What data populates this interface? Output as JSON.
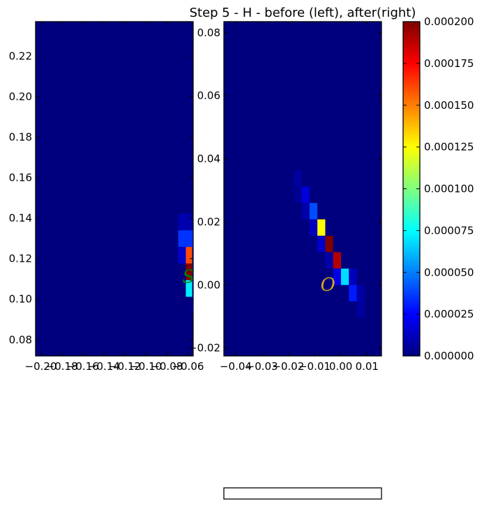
{
  "title": "Step 5 - H - before (left), after(right)",
  "colors": {
    "background": "#00007f",
    "jet": [
      "#00007f",
      "#0000ff",
      "#007fff",
      "#00ffff",
      "#7fff7f",
      "#ffff00",
      "#ff7f00",
      "#ff0000",
      "#7f0000"
    ]
  },
  "chart_data": [
    {
      "type": "heatmap",
      "name": "before",
      "xlim": [
        -0.205,
        -0.055
      ],
      "ylim": [
        0.072,
        0.237
      ],
      "xticks": [
        -0.2,
        -0.18,
        -0.16,
        -0.14,
        -0.12,
        -0.1,
        -0.08,
        -0.06
      ],
      "xtick_labels": [
        "−0.20",
        "−0.18",
        "−0.16",
        "−0.14",
        "−0.12",
        "−0.10",
        "−0.08",
        "−0.06"
      ],
      "yticks": [
        0.08,
        0.1,
        0.12,
        0.14,
        0.16,
        0.18,
        0.2,
        0.22
      ],
      "ytick_labels": [
        "0.08",
        "0.10",
        "0.12",
        "0.14",
        "0.16",
        "0.18",
        "0.20",
        "0.22"
      ],
      "bin_width": 0.0073,
      "bin_height": 0.0082,
      "cells": [
        {
          "x": -0.0693,
          "y": 0.134,
          "v": 1e-05
        },
        {
          "x": -0.0693,
          "y": 0.1258,
          "v": 3.5e-05
        },
        {
          "x": -0.0693,
          "y": 0.1176,
          "v": 1.5e-05
        },
        {
          "x": -0.062,
          "y": 0.134,
          "v": 8e-06
        },
        {
          "x": -0.062,
          "y": 0.1258,
          "v": 3.5e-05
        },
        {
          "x": -0.062,
          "y": 0.1176,
          "v": 0.00016
        },
        {
          "x": -0.062,
          "y": 0.1094,
          "v": 0.0002
        },
        {
          "x": -0.062,
          "y": 0.1012,
          "v": 7.2e-05
        },
        {
          "x": -0.056,
          "y": 0.1176,
          "v": 1.8e-05
        },
        {
          "x": -0.056,
          "y": 0.1094,
          "v": 3e-05
        },
        {
          "x": -0.056,
          "y": 0.1012,
          "v": 2.2e-05
        },
        {
          "x": -0.056,
          "y": 0.093,
          "v": 2.8e-05
        }
      ],
      "marker": {
        "label": "S",
        "x": -0.0595,
        "y": 0.111,
        "color": "#008000"
      }
    },
    {
      "type": "heatmap",
      "name": "after",
      "xlim": [
        -0.0445,
        0.0155
      ],
      "ylim": [
        -0.0225,
        0.0835
      ],
      "xticks": [
        -0.04,
        -0.03,
        -0.02,
        -0.01,
        0.0,
        0.01
      ],
      "xtick_labels": [
        "−0.04",
        "−0.03",
        "−0.02",
        "−0.01",
        "0.00",
        "0.01"
      ],
      "yticks": [
        -0.02,
        0.0,
        0.02,
        0.04,
        0.06,
        0.08
      ],
      "ytick_labels": [
        "−0.02",
        "0.00",
        "0.02",
        "0.04",
        "0.06",
        "0.08"
      ],
      "bin_width": 0.003,
      "bin_height": 0.0052,
      "cells": [
        {
          "x": -0.0179,
          "y": 0.0312,
          "v": 6e-06
        },
        {
          "x": -0.0179,
          "y": 0.026,
          "v": 4e-06
        },
        {
          "x": -0.0149,
          "y": 0.026,
          "v": 1.8e-05
        },
        {
          "x": -0.0149,
          "y": 0.0208,
          "v": 8e-06
        },
        {
          "x": -0.0119,
          "y": 0.0208,
          "v": 4e-05
        },
        {
          "x": -0.0119,
          "y": 0.0156,
          "v": 1.2e-05
        },
        {
          "x": -0.0089,
          "y": 0.0156,
          "v": 0.000125
        },
        {
          "x": -0.0089,
          "y": 0.0104,
          "v": 1.5e-05
        },
        {
          "x": -0.0059,
          "y": 0.0104,
          "v": 0.0002
        },
        {
          "x": -0.0059,
          "y": 0.0052,
          "v": 8e-06
        },
        {
          "x": -0.0029,
          "y": 0.0052,
          "v": 0.00019
        },
        {
          "x": -0.0029,
          "y": 0.0,
          "v": 2e-05
        },
        {
          "x": 0.0001,
          "y": 0.0,
          "v": 6.8e-05
        },
        {
          "x": 0.0031,
          "y": 0.0,
          "v": 1.2e-05
        },
        {
          "x": 0.0031,
          "y": -0.0052,
          "v": 3e-05
        },
        {
          "x": 0.0061,
          "y": -0.0052,
          "v": 8e-06
        },
        {
          "x": 0.0061,
          "y": -0.0104,
          "v": 6e-06
        }
      ],
      "marker": {
        "label": "O",
        "x": -0.0049,
        "y": 0.0,
        "color": "#daa520"
      }
    }
  ],
  "colorbar": {
    "vmin": 0.0,
    "vmax": 0.0002,
    "ticks": [
      0.0,
      2.5e-05,
      5e-05,
      7.5e-05,
      0.0001,
      0.000125,
      0.00015,
      0.000175,
      0.0002
    ],
    "tick_labels": [
      "0.000000",
      "0.000025",
      "0.000050",
      "0.000075",
      "0.000100",
      "0.000125",
      "0.000150",
      "0.000175",
      "0.000200"
    ]
  }
}
